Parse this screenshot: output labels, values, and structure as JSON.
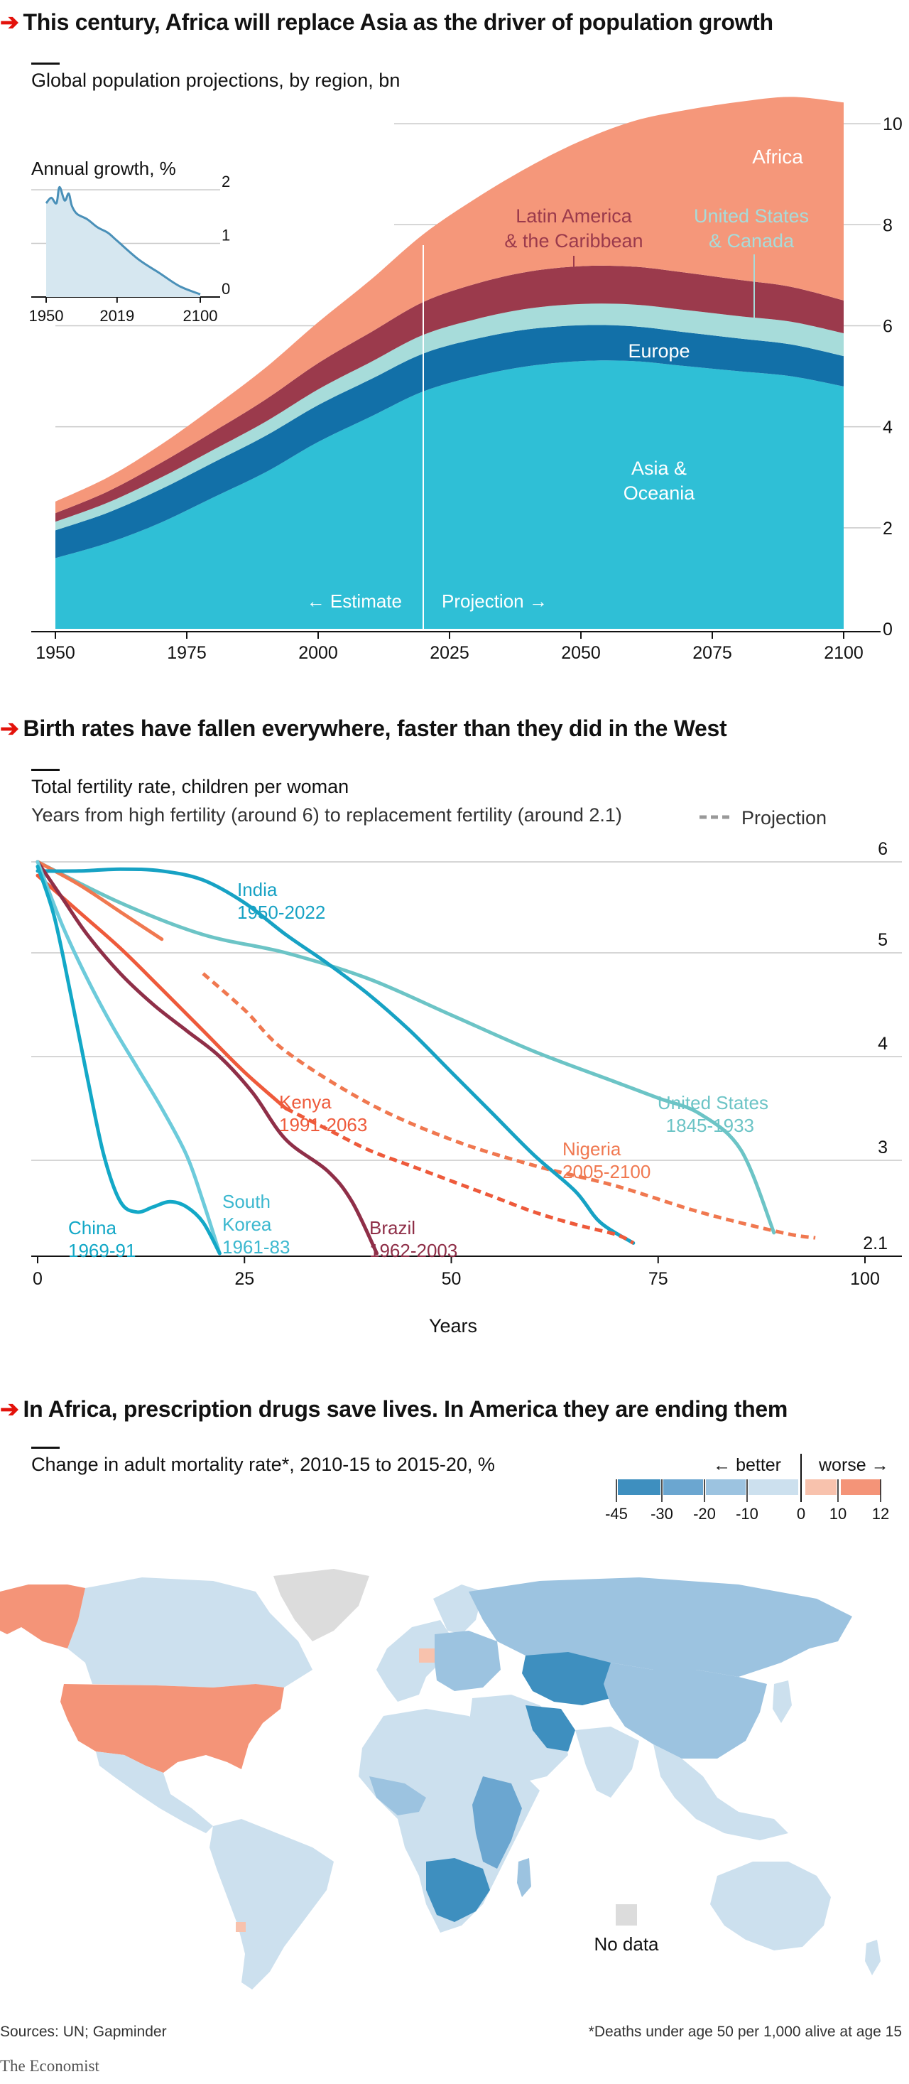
{
  "colors": {
    "accent_red": "#e3120b",
    "asia": "#2fbfd6",
    "europe": "#1270a8",
    "us_canada": "#a7dcda",
    "latam": "#9b3a4c",
    "africa": "#f5977a",
    "india": "#17a2c4",
    "us": "#6cc4c6",
    "kenya": "#ee5a3b",
    "nigeria": "#f07850",
    "china": "#13a8c7",
    "south_korea": "#6dcbdb",
    "brazil": "#8f2f48",
    "better_45": "#3e8fbf",
    "better_30": "#6ba6d0",
    "better_20": "#9cc3e0",
    "better_10": "#cce0ee",
    "worse_10": "#f8c2ad",
    "worse_12": "#f49478",
    "nodata": "#dcdcdc"
  },
  "chart1": {
    "headline": "This century, Africa will replace Asia as the driver of population growth",
    "subtitle": "Global population projections, by region, bn",
    "labels": {
      "africa": "Africa",
      "latam_1": "Latin America",
      "latam_2": "& the Caribbean",
      "us_canada_1": "United States",
      "us_canada_2": "& Canada",
      "europe": "Europe",
      "asia_1": "Asia &",
      "asia_2": "Oceania",
      "estimate": "← Estimate",
      "projection": "Projection →"
    },
    "inset": {
      "title": "Annual growth, %",
      "x_ticks": [
        "1950",
        "2019",
        "2100"
      ],
      "y_ticks": [
        "2",
        "1",
        "0"
      ]
    }
  },
  "chart2": {
    "headline": "Birth rates have fallen everywhere, faster than they did in the West",
    "subtitle": "Total fertility rate, children per woman",
    "subtitle2": "Years from high fertility (around 6) to replacement fertility (around 2.1)",
    "legend_projection": "Projection",
    "xlabel": "Years",
    "labels": {
      "india_1": "India",
      "india_2": "1950-2022",
      "us_1": "United States",
      "us_2": "1845-1933",
      "kenya_1": "Kenya",
      "kenya_2": "1991-2063",
      "nigeria_1": "Nigeria",
      "nigeria_2": "2005-2100",
      "china_1": "China",
      "china_2": "1969-91",
      "sk_1": "South",
      "sk_2": "Korea",
      "sk_3": "1961-83",
      "brazil_1": "Brazil",
      "brazil_2": "1962-2003"
    }
  },
  "chart3": {
    "headline": "In Africa, prescription drugs save lives. In America they are ending them",
    "subtitle": "Change in adult mortality rate*, 2010-15 to 2015-20, %",
    "legend_better": "← better",
    "legend_worse": "worse →",
    "legend_ticks": [
      "-45",
      "-30",
      "-20",
      "-10",
      "0",
      "10",
      "12"
    ],
    "no_data": "No data"
  },
  "footer": {
    "sources": "Sources: UN; Gapminder",
    "note": "*Deaths under age 50 per 1,000 alive at age 15",
    "brand": "The Economist"
  },
  "chart_data": [
    {
      "type": "area",
      "title": "Global population projections, by region, bn",
      "x": [
        1950,
        1960,
        1970,
        1980,
        1990,
        2000,
        2010,
        2020,
        2030,
        2040,
        2050,
        2060,
        2070,
        2080,
        2090,
        2100
      ],
      "stacked": true,
      "series": [
        {
          "name": "Asia & Oceania",
          "values": [
            1.4,
            1.7,
            2.1,
            2.6,
            3.1,
            3.7,
            4.2,
            4.7,
            5.0,
            5.2,
            5.3,
            5.3,
            5.2,
            5.1,
            5.0,
            4.8
          ]
        },
        {
          "name": "Europe",
          "values": [
            0.55,
            0.6,
            0.66,
            0.69,
            0.72,
            0.73,
            0.74,
            0.75,
            0.74,
            0.73,
            0.71,
            0.69,
            0.67,
            0.65,
            0.63,
            0.6
          ]
        },
        {
          "name": "United States & Canada",
          "values": [
            0.17,
            0.2,
            0.23,
            0.25,
            0.28,
            0.31,
            0.34,
            0.37,
            0.39,
            0.41,
            0.42,
            0.43,
            0.44,
            0.44,
            0.45,
            0.45
          ]
        },
        {
          "name": "Latin America & the Caribbean",
          "values": [
            0.17,
            0.22,
            0.29,
            0.36,
            0.44,
            0.52,
            0.59,
            0.65,
            0.7,
            0.73,
            0.75,
            0.75,
            0.74,
            0.72,
            0.69,
            0.65
          ]
        },
        {
          "name": "Africa",
          "values": [
            0.23,
            0.28,
            0.36,
            0.48,
            0.63,
            0.81,
            1.04,
            1.34,
            1.69,
            2.07,
            2.48,
            2.88,
            3.22,
            3.52,
            3.76,
            3.92
          ]
        }
      ],
      "ylim": [
        0,
        11
      ],
      "y_ticks": [
        0,
        2,
        4,
        6,
        8,
        10
      ],
      "x_ticks": [
        1950,
        1975,
        2000,
        2025,
        2050,
        2075,
        2100
      ],
      "divider_year": 2020
    },
    {
      "type": "line",
      "title": "Annual growth, %",
      "x": [
        1950,
        1955,
        1960,
        1963,
        1968,
        1972,
        1975,
        1980,
        1990,
        2000,
        2010,
        2019,
        2040,
        2060,
        2080,
        2100
      ],
      "values": [
        1.75,
        1.85,
        1.75,
        2.05,
        1.8,
        1.93,
        1.7,
        1.55,
        1.45,
        1.3,
        1.2,
        1.05,
        0.7,
        0.45,
        0.2,
        0.05
      ],
      "ylim": [
        0,
        2.2
      ]
    },
    {
      "type": "line",
      "title": "Total fertility rate, children per woman",
      "xlabel": "Years",
      "xlim": [
        0,
        100
      ],
      "ylim": [
        2.1,
        6
      ],
      "y_ticks": [
        2.1,
        3,
        4,
        5,
        6
      ],
      "x_ticks": [
        0,
        25,
        50,
        75,
        100
      ],
      "series": [
        {
          "name": "India 1950-2022",
          "points": [
            [
              0,
              5.9
            ],
            [
              5,
              5.9
            ],
            [
              10,
              5.92
            ],
            [
              15,
              5.9
            ],
            [
              20,
              5.8
            ],
            [
              25,
              5.55
            ],
            [
              30,
              5.2
            ],
            [
              35,
              4.9
            ],
            [
              40,
              4.6
            ],
            [
              45,
              4.25
            ],
            [
              50,
              3.85
            ],
            [
              55,
              3.45
            ],
            [
              60,
              3.05
            ],
            [
              65,
              2.7
            ],
            [
              68,
              2.4
            ],
            [
              72,
              2.2
            ]
          ]
        },
        {
          "name": "United States 1845-1933",
          "points": [
            [
              0,
              6.0
            ],
            [
              10,
              5.55
            ],
            [
              20,
              5.2
            ],
            [
              30,
              5.0
            ],
            [
              40,
              4.75
            ],
            [
              50,
              4.4
            ],
            [
              60,
              4.05
            ],
            [
              70,
              3.75
            ],
            [
              75,
              3.6
            ],
            [
              80,
              3.45
            ],
            [
              85,
              3.1
            ],
            [
              89,
              2.3
            ]
          ]
        },
        {
          "name": "Kenya 1991-2063",
          "points": [
            [
              0,
              5.85
            ],
            [
              5,
              5.45
            ],
            [
              10,
              5.05
            ],
            [
              15,
              4.65
            ],
            [
              20,
              4.25
            ],
            [
              25,
              3.85
            ],
            [
              30,
              3.5
            ],
            [
              35,
              3.3
            ],
            [
              40,
              3.1
            ],
            [
              45,
              2.95
            ],
            [
              50,
              2.8
            ],
            [
              55,
              2.65
            ],
            [
              60,
              2.5
            ],
            [
              65,
              2.38
            ],
            [
              70,
              2.28
            ],
            [
              72,
              2.2
            ]
          ],
          "projection_from_year": 30
        },
        {
          "name": "Nigeria 2005-2100",
          "points": [
            [
              0,
              6.0
            ],
            [
              5,
              5.75
            ],
            [
              10,
              5.45
            ],
            [
              15,
              5.15
            ],
            [
              20,
              4.8
            ],
            [
              25,
              4.45
            ],
            [
              30,
              4.05
            ],
            [
              40,
              3.55
            ],
            [
              50,
              3.2
            ],
            [
              60,
              2.95
            ],
            [
              70,
              2.75
            ],
            [
              80,
              2.5
            ],
            [
              90,
              2.3
            ],
            [
              94,
              2.25
            ]
          ],
          "projection_from_year": 17
        },
        {
          "name": "China 1969-91",
          "points": [
            [
              0,
              5.95
            ],
            [
              2,
              5.4
            ],
            [
              4,
              4.6
            ],
            [
              6,
              3.8
            ],
            [
              8,
              3.05
            ],
            [
              10,
              2.6
            ],
            [
              12,
              2.5
            ],
            [
              14,
              2.55
            ],
            [
              16,
              2.6
            ],
            [
              18,
              2.55
            ],
            [
              20,
              2.4
            ],
            [
              22,
              2.1
            ]
          ]
        },
        {
          "name": "South Korea 1961-83",
          "points": [
            [
              0,
              6.0
            ],
            [
              3,
              5.3
            ],
            [
              6,
              4.75
            ],
            [
              9,
              4.3
            ],
            [
              12,
              3.9
            ],
            [
              15,
              3.5
            ],
            [
              18,
              3.05
            ],
            [
              20,
              2.6
            ],
            [
              22,
              2.1
            ]
          ]
        },
        {
          "name": "Brazil 1962-2003",
          "points": [
            [
              0,
              6.0
            ],
            [
              3,
              5.6
            ],
            [
              6,
              5.2
            ],
            [
              10,
              4.8
            ],
            [
              14,
              4.5
            ],
            [
              18,
              4.25
            ],
            [
              22,
              4.0
            ],
            [
              26,
              3.65
            ],
            [
              30,
              3.2
            ],
            [
              35,
              2.9
            ],
            [
              38,
              2.6
            ],
            [
              41,
              2.1
            ]
          ]
        }
      ]
    },
    {
      "type": "heatmap",
      "title": "Change in adult mortality rate*, 2010-15 to 2015-20, %",
      "legend_bins": [
        -45,
        -30,
        -20,
        -10,
        0,
        10,
        12
      ],
      "regions": [
        {
          "name": "United States",
          "bin": "worse_12"
        },
        {
          "name": "Alaska",
          "bin": "worse_12"
        },
        {
          "name": "Canada",
          "bin": "better_10"
        },
        {
          "name": "Greenland",
          "bin": "nodata"
        },
        {
          "name": "Latin America",
          "bin": "better_10"
        },
        {
          "name": "Uruguay",
          "bin": "worse_10"
        },
        {
          "name": "Europe",
          "bin": "better_10"
        },
        {
          "name": "Eastern Europe",
          "bin": "better_20"
        },
        {
          "name": "Poland",
          "bin": "worse_10"
        },
        {
          "name": "Russia",
          "bin": "better_20"
        },
        {
          "name": "Kazakhstan",
          "bin": "better_45"
        },
        {
          "name": "Iran",
          "bin": "better_45"
        },
        {
          "name": "Africa",
          "bin": "better_10"
        },
        {
          "name": "East Africa",
          "bin": "better_30"
        },
        {
          "name": "Southern Africa",
          "bin": "better_45"
        },
        {
          "name": "Asia",
          "bin": "better_10"
        },
        {
          "name": "Australia",
          "bin": "better_10"
        }
      ]
    }
  ]
}
